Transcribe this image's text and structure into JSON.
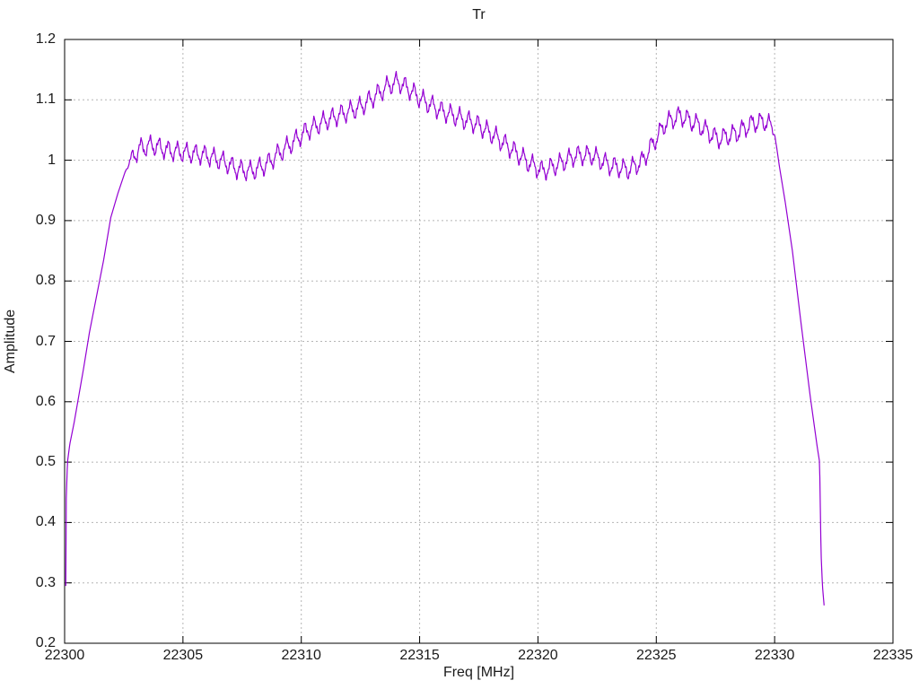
{
  "chart_data": {
    "type": "line",
    "title": "Tr",
    "xlabel": "Freq [MHz]",
    "ylabel": "Amplitude",
    "xlim": [
      22300,
      22335
    ],
    "ylim": [
      0.2,
      1.2
    ],
    "grid": true,
    "x_ticks": [
      22300,
      22305,
      22310,
      22315,
      22320,
      22325,
      22330,
      22335
    ],
    "y_ticks": [
      0.2,
      0.3,
      0.4,
      0.5,
      0.6,
      0.7,
      0.8,
      0.9,
      1,
      1.1,
      1.2
    ],
    "line_color": "#9400d3",
    "grid_color": "#b5b5b5",
    "border_color": "#000000",
    "series": [
      {
        "name": "Tr",
        "color": "#9400d3",
        "envelope_points": [
          [
            22300.05,
            0.295
          ],
          [
            22300.07,
            0.44
          ],
          [
            22300.12,
            0.5
          ],
          [
            22300.22,
            0.53
          ],
          [
            22300.4,
            0.565
          ],
          [
            22300.6,
            0.61
          ],
          [
            22300.8,
            0.655
          ],
          [
            22301.05,
            0.715
          ],
          [
            22301.35,
            0.775
          ],
          [
            22301.65,
            0.835
          ],
          [
            22301.95,
            0.905
          ],
          [
            22302.25,
            0.945
          ],
          [
            22302.55,
            0.98
          ],
          [
            22302.85,
            1.005
          ],
          [
            22303.2,
            1.02
          ],
          [
            22303.7,
            1.025
          ],
          [
            22304.4,
            1.016
          ],
          [
            22305.2,
            1.012
          ],
          [
            22306.0,
            1.008
          ],
          [
            22306.7,
            0.998
          ],
          [
            22307.3,
            0.985
          ],
          [
            22307.9,
            0.982
          ],
          [
            22308.5,
            0.992
          ],
          [
            22309.0,
            1.01
          ],
          [
            22309.6,
            1.028
          ],
          [
            22310.2,
            1.048
          ],
          [
            22311.0,
            1.065
          ],
          [
            22311.8,
            1.078
          ],
          [
            22312.5,
            1.088
          ],
          [
            22313.1,
            1.106
          ],
          [
            22313.7,
            1.124
          ],
          [
            22314.1,
            1.13
          ],
          [
            22314.6,
            1.116
          ],
          [
            22315.1,
            1.1
          ],
          [
            22315.9,
            1.082
          ],
          [
            22316.7,
            1.07
          ],
          [
            22317.4,
            1.06
          ],
          [
            22318.1,
            1.042
          ],
          [
            22318.9,
            1.018
          ],
          [
            22319.6,
            0.996
          ],
          [
            22320.2,
            0.982
          ],
          [
            22320.9,
            0.994
          ],
          [
            22321.6,
            1.008
          ],
          [
            22322.3,
            1.008
          ],
          [
            22323.0,
            0.992
          ],
          [
            22323.8,
            0.984
          ],
          [
            22324.4,
            0.998
          ],
          [
            22324.9,
            1.03
          ],
          [
            22325.4,
            1.062
          ],
          [
            22326.0,
            1.074
          ],
          [
            22326.8,
            1.058
          ],
          [
            22327.6,
            1.035
          ],
          [
            22328.4,
            1.045
          ],
          [
            22329.1,
            1.062
          ],
          [
            22329.7,
            1.064
          ],
          [
            22330.0,
            1.045
          ],
          [
            22330.2,
            0.99
          ],
          [
            22330.45,
            0.93
          ],
          [
            22330.75,
            0.85
          ],
          [
            22331.1,
            0.735
          ],
          [
            22331.5,
            0.61
          ],
          [
            22331.8,
            0.525
          ],
          [
            22331.9,
            0.5
          ],
          [
            22331.96,
            0.35
          ],
          [
            22332.02,
            0.295
          ],
          [
            22332.1,
            0.258
          ]
        ],
        "ripple": {
          "period": 0.385,
          "amplitude": 0.013,
          "phase_peak": 22314.0,
          "window": [
            22302.6,
            22330.1
          ],
          "ramp": 0.35,
          "jitter": [
            {
              "period": 0.128,
              "amplitude": 0.0035,
              "phase": 0.8
            },
            {
              "period": 0.067,
              "amplitude": 0.0025,
              "phase": 2.0
            }
          ]
        }
      }
    ]
  }
}
